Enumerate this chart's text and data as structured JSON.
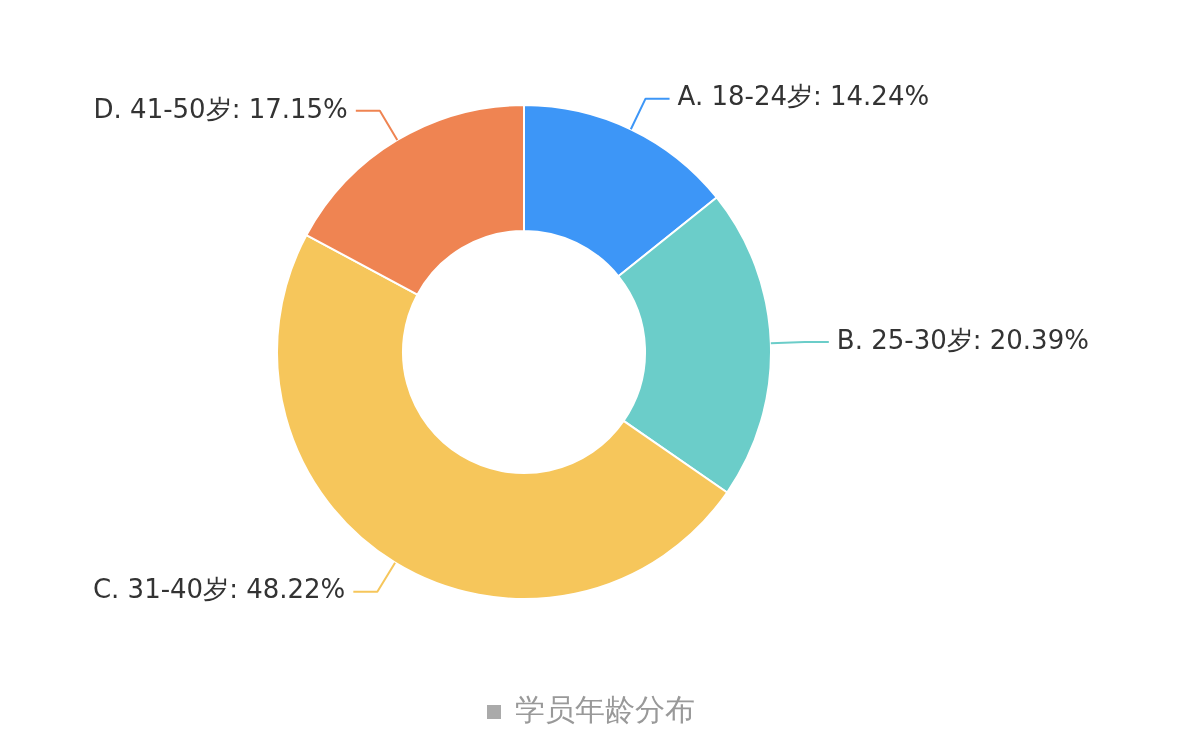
{
  "chart_data": {
    "type": "donut",
    "title": "学员年龄分布",
    "categories": [
      "A. 18-24岁",
      "B. 25-30岁",
      "C. 31-40岁",
      "D. 41-50岁"
    ],
    "values": [
      14.24,
      20.39,
      48.22,
      17.15
    ],
    "value_labels": [
      "14.24%",
      "20.39%",
      "48.22%",
      "17.15%"
    ],
    "colors": [
      "#3d96f7",
      "#6bcdc9",
      "#f6c65b",
      "#ef8452"
    ],
    "legend": false
  }
}
